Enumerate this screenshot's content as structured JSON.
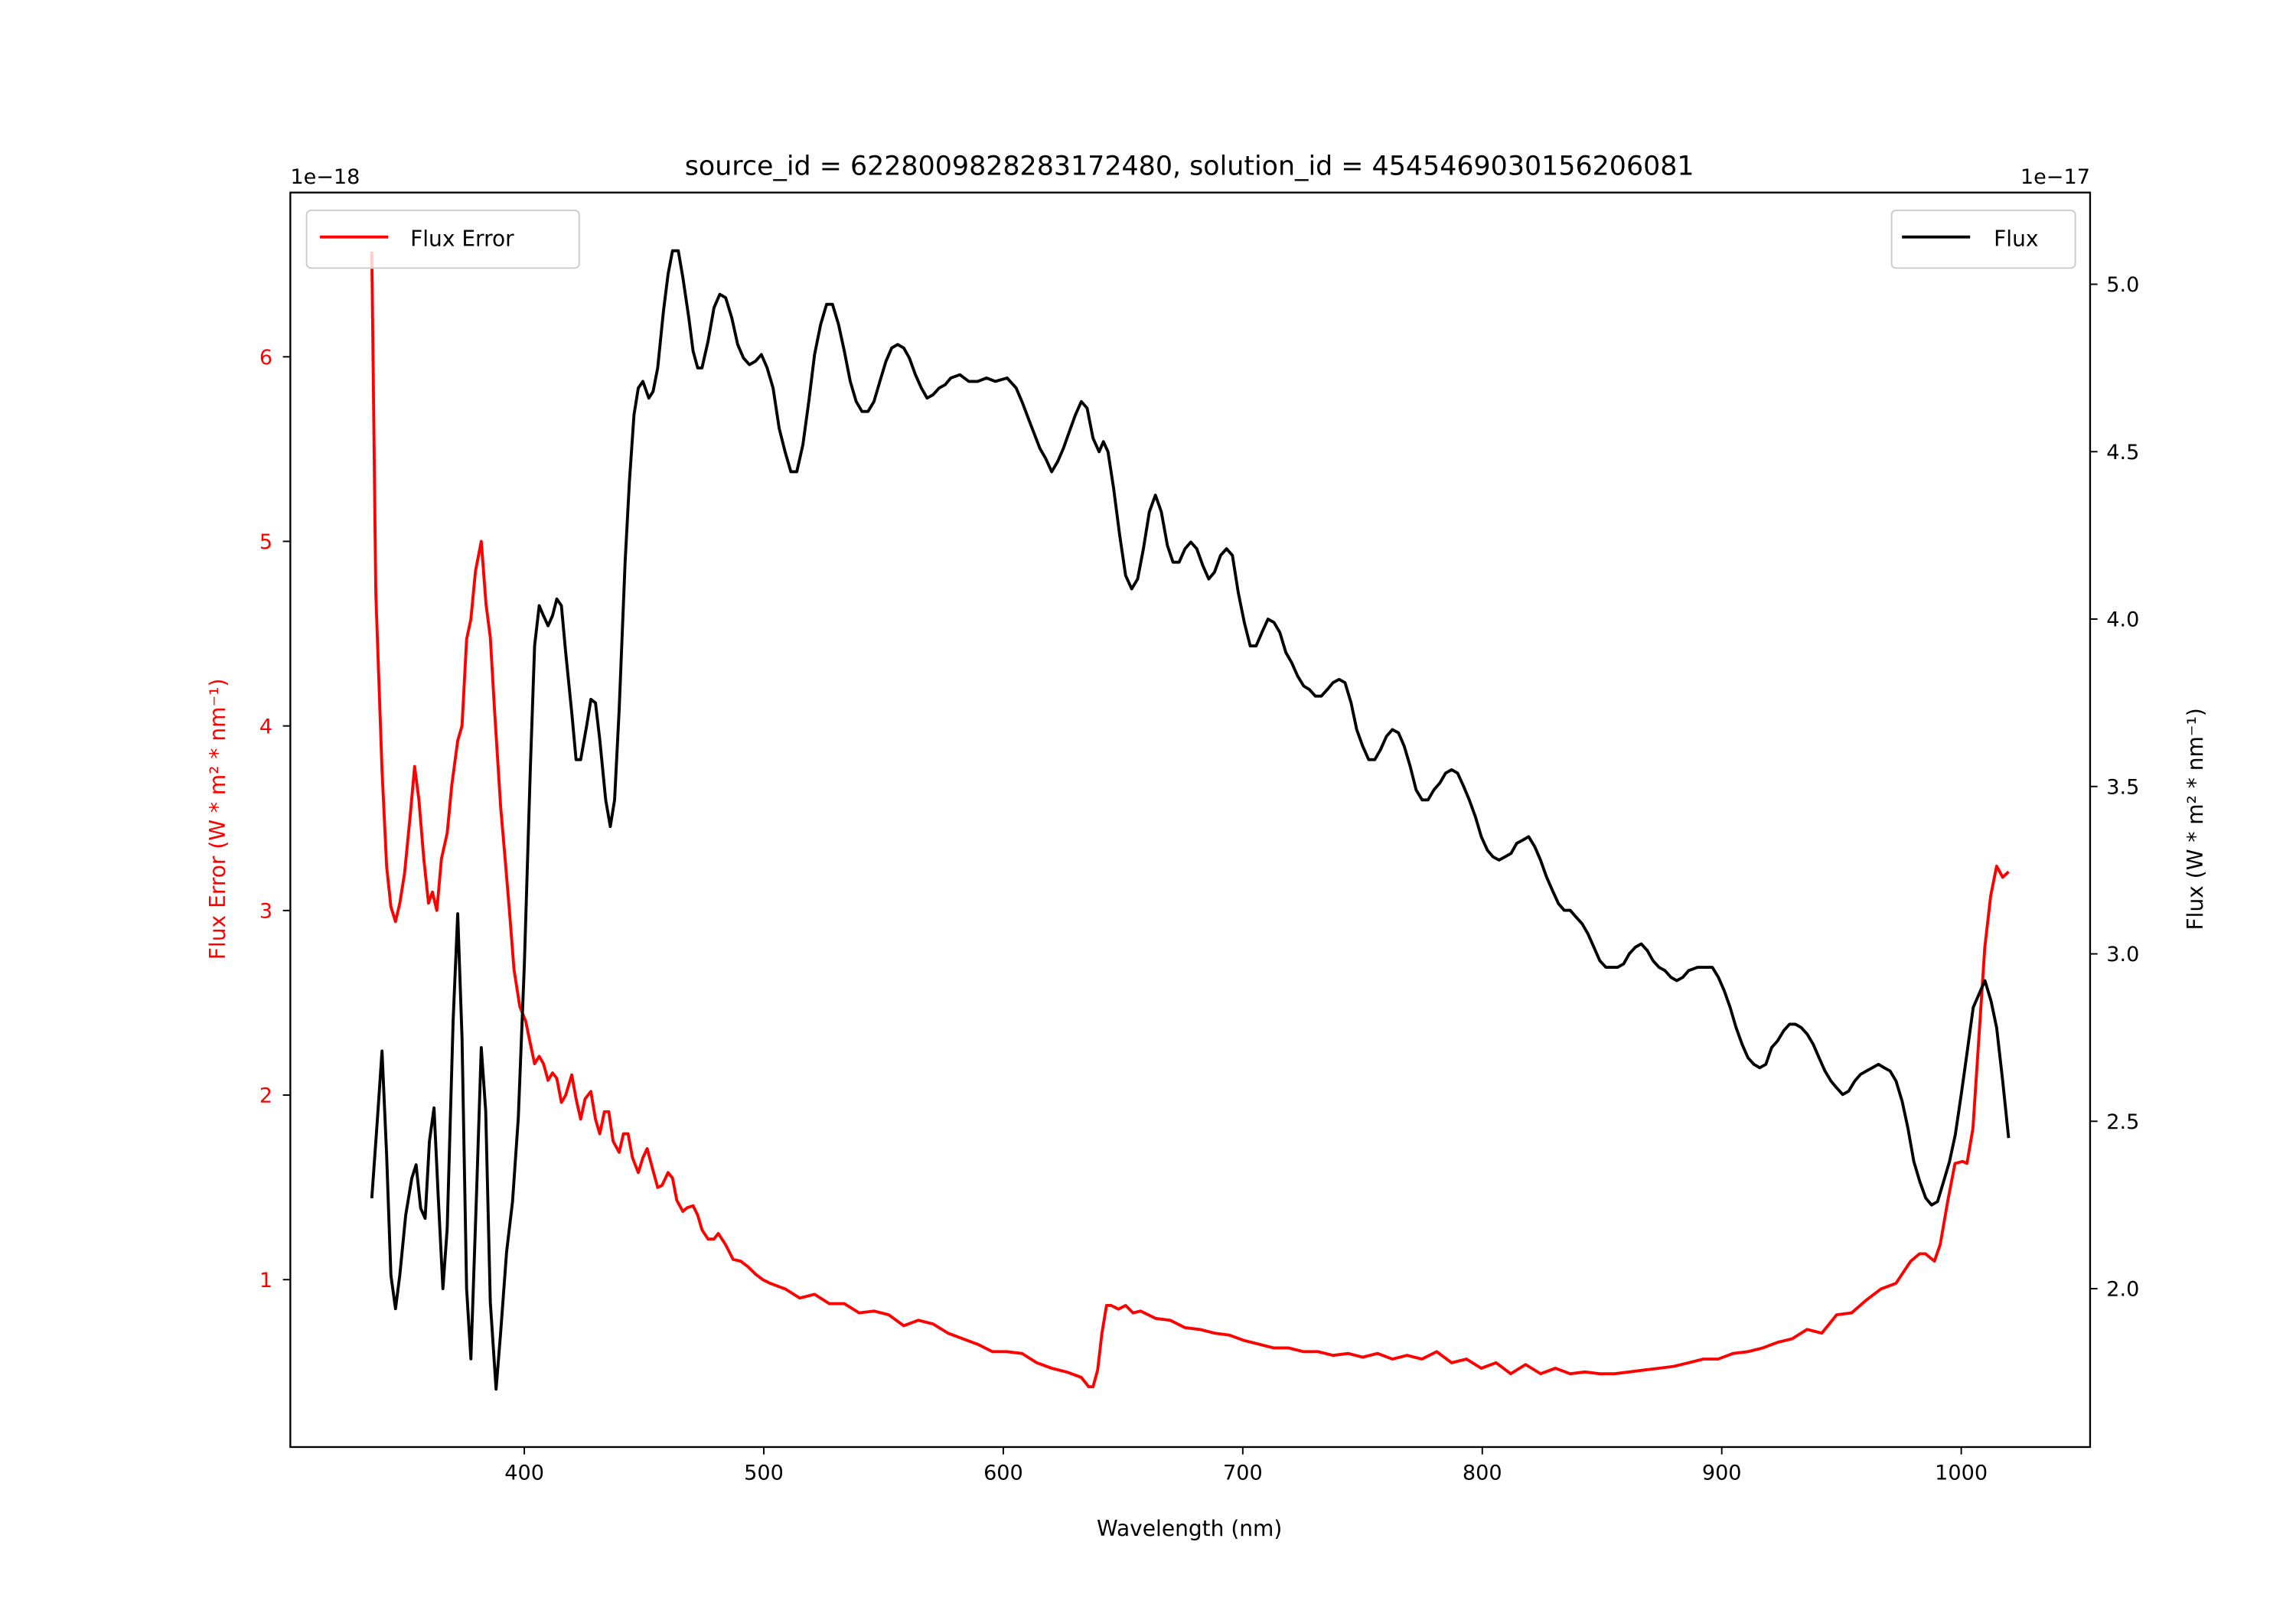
{
  "chart_data": {
    "type": "line",
    "title": "source_id = 6228009828283172480, solution_id = 4545469030156206081",
    "xlabel": "Wavelength (nm)",
    "ylabel_left": "Flux Error (W * m² * nm⁻¹)",
    "ylabel_right": "Flux (W * m² * nm⁻¹)",
    "offset_left": "1e−18",
    "offset_right": "1e−17",
    "xlim": [
      302.3,
      1053.8
    ],
    "ylim_left": [
      0.093,
      6.89
    ],
    "ylim_right": [
      1.527,
      5.274
    ],
    "xticks": [
      400,
      500,
      600,
      700,
      800,
      900,
      1000
    ],
    "yticks_left": [
      1,
      2,
      3,
      4,
      5,
      6
    ],
    "yticks_right": [
      "2.0",
      "2.5",
      "3.0",
      "3.5",
      "4.0",
      "4.5",
      "5.0"
    ],
    "grid": false,
    "colors": {
      "flux_error": "#ff0000",
      "flux": "#000000"
    },
    "legend_left": {
      "label": "Flux Error",
      "placement": "upper-left"
    },
    "legend_right": {
      "label": "Flux",
      "placement": "upper-right"
    },
    "series": [
      {
        "name": "Flux Error",
        "axis": "left",
        "color": "#ff0000",
        "x": [
          336.3,
          338,
          340.6,
          342.5,
          344.3,
          346.2,
          348,
          350,
          352.4,
          354.2,
          356,
          358,
          360,
          361.6,
          363.5,
          365.4,
          367.8,
          369.7,
          372.2,
          374,
          375.9,
          377.7,
          379.6,
          382,
          384,
          385.8,
          387.6,
          390.1,
          392,
          393.8,
          395.7,
          398.1,
          400.6,
          402.5,
          404.3,
          406.2,
          408,
          409.9,
          411.8,
          413.6,
          415.5,
          417.3,
          419.8,
          421.6,
          423.5,
          425.4,
          427.8,
          429.7,
          431.5,
          433.4,
          435.3,
          437.1,
          439.6,
          441.4,
          443.3,
          445.2,
          447.6,
          449.5,
          451.3,
          453.8,
          455.7,
          457.5,
          460,
          461.9,
          463.7,
          466.2,
          468,
          470.5,
          472.4,
          474.2,
          476.7,
          479.2,
          481,
          484,
          487.2,
          490.3,
          493.4,
          496.5,
          499.6,
          502.7,
          508.9,
          515,
          521.2,
          527.4,
          533.6,
          539.8,
          546,
          552.2,
          558.4,
          564.5,
          570.7,
          576.9,
          583.1,
          589.3,
          595.5,
          601.6,
          607.8,
          614,
          620.2,
          626.4,
          632.6,
          635.7,
          637.5,
          639.4,
          641.2,
          643.1,
          645,
          648.1,
          651.1,
          654.2,
          657.3,
          663.5,
          669.7,
          675.9,
          682.1,
          688.2,
          694.4,
          700.6,
          706.8,
          713,
          719.2,
          725.4,
          731.5,
          737.7,
          743.9,
          750.1,
          756.3,
          762.5,
          768.6,
          774.8,
          781,
          787.2,
          793.4,
          799.6,
          805.8,
          811.9,
          818.1,
          824.3,
          830.5,
          836.7,
          842.9,
          849,
          855.2,
          861.4,
          867.6,
          873.8,
          880,
          886.1,
          892.3,
          898.5,
          904.7,
          910.9,
          917.1,
          923.3,
          929.4,
          935.6,
          941.8,
          948,
          954.2,
          960.4,
          966.5,
          972.7,
          978.9,
          982.6,
          985,
          988.8,
          991.2,
          994.4,
          997.4,
          1000.6,
          1002.4,
          1004.9,
          1007.4,
          1009.8,
          1012.3,
          1014.8,
          1017.3,
          1019.8
        ],
        "y": [
          6.57,
          4.72,
          3.76,
          3.24,
          3.02,
          2.94,
          3.04,
          3.2,
          3.52,
          3.78,
          3.6,
          3.28,
          3.04,
          3.1,
          3.0,
          3.28,
          3.42,
          3.68,
          3.92,
          4.0,
          4.47,
          4.58,
          4.84,
          5.0,
          4.66,
          4.48,
          4.08,
          3.56,
          3.28,
          3.0,
          2.68,
          2.48,
          2.4,
          2.28,
          2.17,
          2.21,
          2.17,
          2.08,
          2.12,
          2.09,
          1.96,
          2.0,
          2.11,
          1.98,
          1.87,
          1.98,
          2.02,
          1.87,
          1.79,
          1.91,
          1.91,
          1.75,
          1.69,
          1.79,
          1.79,
          1.66,
          1.58,
          1.66,
          1.71,
          1.59,
          1.5,
          1.51,
          1.58,
          1.55,
          1.43,
          1.37,
          1.39,
          1.4,
          1.35,
          1.27,
          1.22,
          1.22,
          1.25,
          1.19,
          1.11,
          1.1,
          1.07,
          1.03,
          1.0,
          0.98,
          0.95,
          0.9,
          0.92,
          0.87,
          0.87,
          0.82,
          0.83,
          0.81,
          0.75,
          0.78,
          0.76,
          0.71,
          0.68,
          0.65,
          0.61,
          0.61,
          0.6,
          0.55,
          0.52,
          0.5,
          0.47,
          0.42,
          0.42,
          0.51,
          0.71,
          0.86,
          0.86,
          0.84,
          0.86,
          0.82,
          0.83,
          0.79,
          0.78,
          0.74,
          0.73,
          0.71,
          0.7,
          0.67,
          0.65,
          0.63,
          0.63,
          0.61,
          0.61,
          0.59,
          0.6,
          0.58,
          0.6,
          0.57,
          0.59,
          0.57,
          0.61,
          0.55,
          0.57,
          0.52,
          0.55,
          0.49,
          0.54,
          0.49,
          0.52,
          0.49,
          0.5,
          0.49,
          0.49,
          0.5,
          0.51,
          0.52,
          0.53,
          0.55,
          0.57,
          0.57,
          0.6,
          0.61,
          0.63,
          0.66,
          0.68,
          0.73,
          0.71,
          0.81,
          0.82,
          0.89,
          0.95,
          0.98,
          1.1,
          1.14,
          1.14,
          1.1,
          1.19,
          1.43,
          1.63,
          1.64,
          1.63,
          1.82,
          2.32,
          2.8,
          3.08,
          3.24,
          3.18,
          3.21
        ]
      },
      {
        "name": "Flux",
        "axis": "right",
        "color": "#000000",
        "x": [
          336.3,
          338.8,
          340.6,
          342.5,
          344.3,
          346.2,
          348,
          350.5,
          353,
          354.8,
          356.7,
          358.6,
          360.4,
          362.3,
          364.1,
          366,
          367.8,
          370.3,
          372.2,
          374,
          375.9,
          377.7,
          380.2,
          382,
          383.9,
          385.8,
          388.2,
          390.1,
          392.6,
          395.1,
          397.5,
          400,
          402.5,
          404.3,
          406.2,
          408,
          409.9,
          411.8,
          413.6,
          415.5,
          417.3,
          419.8,
          421.6,
          423.5,
          426,
          427.8,
          429.7,
          431.5,
          434,
          435.9,
          437.7,
          439.6,
          442.1,
          443.9,
          445.8,
          447.6,
          449.5,
          452,
          453.8,
          455.7,
          458.1,
          460,
          461.9,
          464.3,
          466.2,
          468.7,
          470.5,
          472.4,
          474.2,
          476.7,
          479.2,
          481.6,
          484.1,
          486.6,
          489.1,
          491.5,
          494,
          496.5,
          499,
          501.4,
          503.9,
          506.4,
          508.9,
          511.3,
          513.8,
          516.3,
          518.8,
          521.2,
          523.7,
          526.2,
          528.7,
          531.2,
          533.6,
          536.1,
          538.6,
          541,
          543.5,
          546,
          548.5,
          551,
          553.4,
          555.9,
          558.4,
          560.8,
          563.3,
          565.8,
          568.2,
          570.7,
          573.2,
          575.7,
          578.1,
          581.9,
          585.6,
          589.3,
          593,
          596.7,
          601.6,
          605.4,
          607.8,
          611.5,
          615.3,
          617.7,
          620.2,
          622.7,
          625.1,
          627.6,
          630.1,
          632.6,
          635,
          637.5,
          640,
          641.8,
          643.7,
          646.1,
          648.6,
          651.1,
          653.6,
          656.1,
          658.5,
          661,
          663.5,
          666,
          668.5,
          670.9,
          673.4,
          675.9,
          678.3,
          680.8,
          683.3,
          685.8,
          688.2,
          690.7,
          693.2,
          695.7,
          698.1,
          700.6,
          703.1,
          705.6,
          708,
          710.5,
          713,
          715.5,
          718,
          720.4,
          722.9,
          725.4,
          727.8,
          730.3,
          732.8,
          735.3,
          737.7,
          740.2,
          742.7,
          745.2,
          747.6,
          750.1,
          752.6,
          755.1,
          757.5,
          760,
          762.5,
          765,
          767.4,
          769.9,
          772.4,
          774.9,
          777.3,
          779.8,
          782.3,
          784.7,
          787.2,
          789.7,
          792.2,
          794.6,
          797.1,
          799.6,
          802.1,
          804.5,
          807,
          809.5,
          812,
          814.4,
          816.9,
          819.4,
          821.9,
          824.3,
          826.8,
          829.3,
          831.8,
          834.2,
          836.7,
          839.2,
          841.7,
          844.1,
          846.6,
          849.1,
          851.6,
          854,
          856.5,
          859,
          861.4,
          863.9,
          866.4,
          868.9,
          871.3,
          873.8,
          876.3,
          878.8,
          881.2,
          883.7,
          886.2,
          889.9,
          893.6,
          896.1,
          898.6,
          901,
          903.5,
          906,
          908.5,
          910.9,
          913.4,
          915.9,
          918.4,
          920.8,
          923.3,
          925.8,
          928.3,
          930.7,
          933.2,
          935.7,
          938.2,
          940.6,
          943.1,
          945.6,
          948,
          950.5,
          953,
          955.5,
          957.9,
          960.4,
          962.9,
          965.4,
          967.8,
          970.3,
          972.8,
          975.3,
          977.7,
          980.2,
          982.7,
          985.2,
          987.6,
          990.1,
          992.6,
          995.1,
          997.5,
          1000,
          1002.5,
          1005,
          1007.4,
          1009.9,
          1012.4,
          1014.8,
          1017.3,
          1019.8
        ],
        "y": [
          2.27,
          2.52,
          2.71,
          2.4,
          2.04,
          1.94,
          2.04,
          2.22,
          2.33,
          2.37,
          2.24,
          2.21,
          2.44,
          2.54,
          2.27,
          2.0,
          2.18,
          2.8,
          3.12,
          2.75,
          2.0,
          1.79,
          2.31,
          2.72,
          2.53,
          1.96,
          1.7,
          1.87,
          2.11,
          2.26,
          2.51,
          2.97,
          3.55,
          3.92,
          4.04,
          4.01,
          3.98,
          4.01,
          4.06,
          4.04,
          3.9,
          3.72,
          3.58,
          3.58,
          3.68,
          3.76,
          3.75,
          3.64,
          3.46,
          3.38,
          3.46,
          3.73,
          4.17,
          4.41,
          4.61,
          4.69,
          4.71,
          4.66,
          4.68,
          4.75,
          4.92,
          5.03,
          5.1,
          5.1,
          5.02,
          4.9,
          4.8,
          4.75,
          4.75,
          4.83,
          4.93,
          4.97,
          4.96,
          4.9,
          4.82,
          4.78,
          4.76,
          4.77,
          4.79,
          4.75,
          4.69,
          4.57,
          4.5,
          4.44,
          4.44,
          4.52,
          4.65,
          4.79,
          4.88,
          4.94,
          4.94,
          4.88,
          4.8,
          4.71,
          4.65,
          4.62,
          4.62,
          4.65,
          4.71,
          4.77,
          4.81,
          4.82,
          4.81,
          4.78,
          4.73,
          4.69,
          4.66,
          4.67,
          4.69,
          4.7,
          4.72,
          4.73,
          4.71,
          4.71,
          4.72,
          4.71,
          4.72,
          4.69,
          4.65,
          4.58,
          4.51,
          4.48,
          4.44,
          4.47,
          4.51,
          4.56,
          4.61,
          4.65,
          4.63,
          4.54,
          4.5,
          4.53,
          4.5,
          4.39,
          4.25,
          4.13,
          4.09,
          4.12,
          4.21,
          4.32,
          4.37,
          4.32,
          4.22,
          4.17,
          4.17,
          4.21,
          4.23,
          4.21,
          4.16,
          4.12,
          4.14,
          4.19,
          4.21,
          4.19,
          4.08,
          3.99,
          3.92,
          3.92,
          3.96,
          4.0,
          3.99,
          3.96,
          3.9,
          3.87,
          3.83,
          3.8,
          3.79,
          3.77,
          3.77,
          3.79,
          3.81,
          3.82,
          3.81,
          3.75,
          3.67,
          3.62,
          3.58,
          3.58,
          3.61,
          3.65,
          3.67,
          3.66,
          3.62,
          3.56,
          3.49,
          3.46,
          3.46,
          3.49,
          3.51,
          3.54,
          3.55,
          3.54,
          3.5,
          3.46,
          3.41,
          3.35,
          3.31,
          3.29,
          3.28,
          3.29,
          3.3,
          3.33,
          3.34,
          3.35,
          3.32,
          3.28,
          3.23,
          3.19,
          3.15,
          3.13,
          3.13,
          3.11,
          3.09,
          3.06,
          3.02,
          2.98,
          2.96,
          2.96,
          2.96,
          2.97,
          3.0,
          3.02,
          3.03,
          3.01,
          2.98,
          2.96,
          2.95,
          2.93,
          2.92,
          2.93,
          2.95,
          2.96,
          2.96,
          2.96,
          2.93,
          2.89,
          2.84,
          2.78,
          2.73,
          2.69,
          2.67,
          2.66,
          2.67,
          2.72,
          2.74,
          2.77,
          2.79,
          2.79,
          2.78,
          2.76,
          2.73,
          2.69,
          2.65,
          2.62,
          2.6,
          2.58,
          2.59,
          2.62,
          2.64,
          2.65,
          2.66,
          2.67,
          2.66,
          2.65,
          2.62,
          2.56,
          2.48,
          2.38,
          2.32,
          2.27,
          2.25,
          2.26,
          2.32,
          2.38,
          2.46,
          2.58,
          2.71,
          2.84,
          2.88,
          2.92,
          2.86,
          2.78,
          2.62,
          2.45
        ]
      }
    ]
  }
}
